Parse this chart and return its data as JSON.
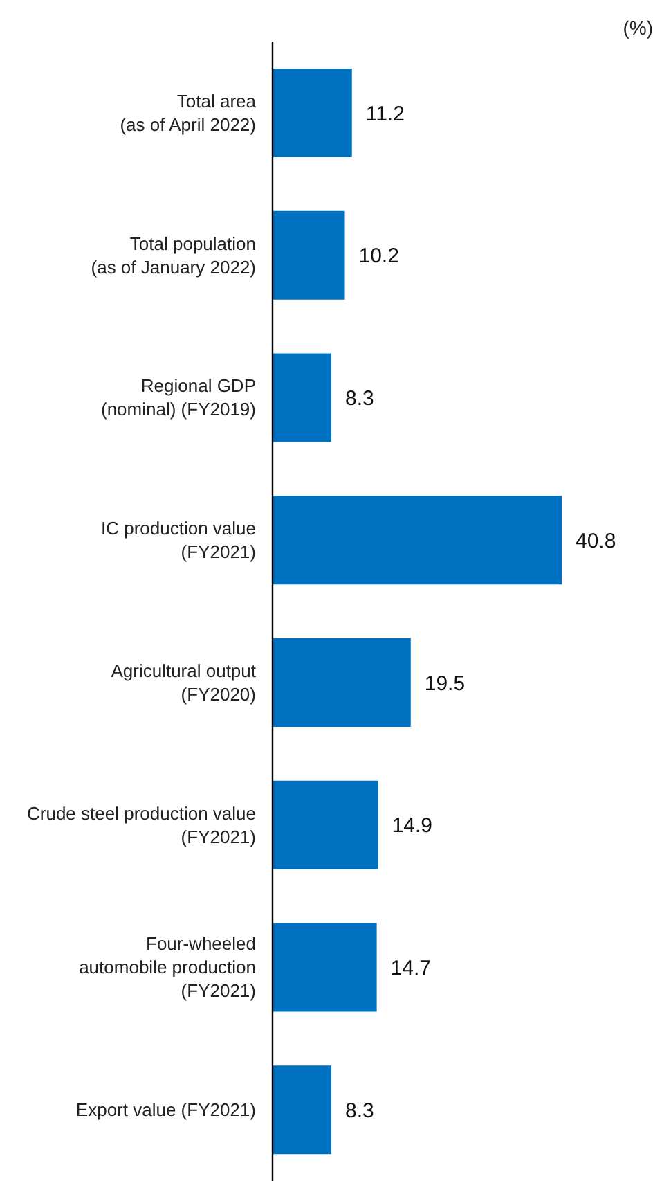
{
  "chart_data": {
    "type": "bar",
    "orientation": "horizontal",
    "xlabel": "(%)",
    "categories": [
      "Total area\n(as of April 2022)",
      "Total population\n(as of January 2022)",
      "Regional GDP\n(nominal) (FY2019)",
      "IC production value\n(FY2021)",
      "Agricultural output\n(FY2020)",
      "Crude steel production value\n(FY2021)",
      "Four-wheeled\nautomobile production\n(FY2021)",
      "Export value (FY2021)"
    ],
    "values": [
      11.2,
      10.2,
      8.3,
      40.8,
      19.5,
      14.9,
      14.7,
      8.3
    ],
    "color": "#0070c0",
    "data_labels": true
  }
}
